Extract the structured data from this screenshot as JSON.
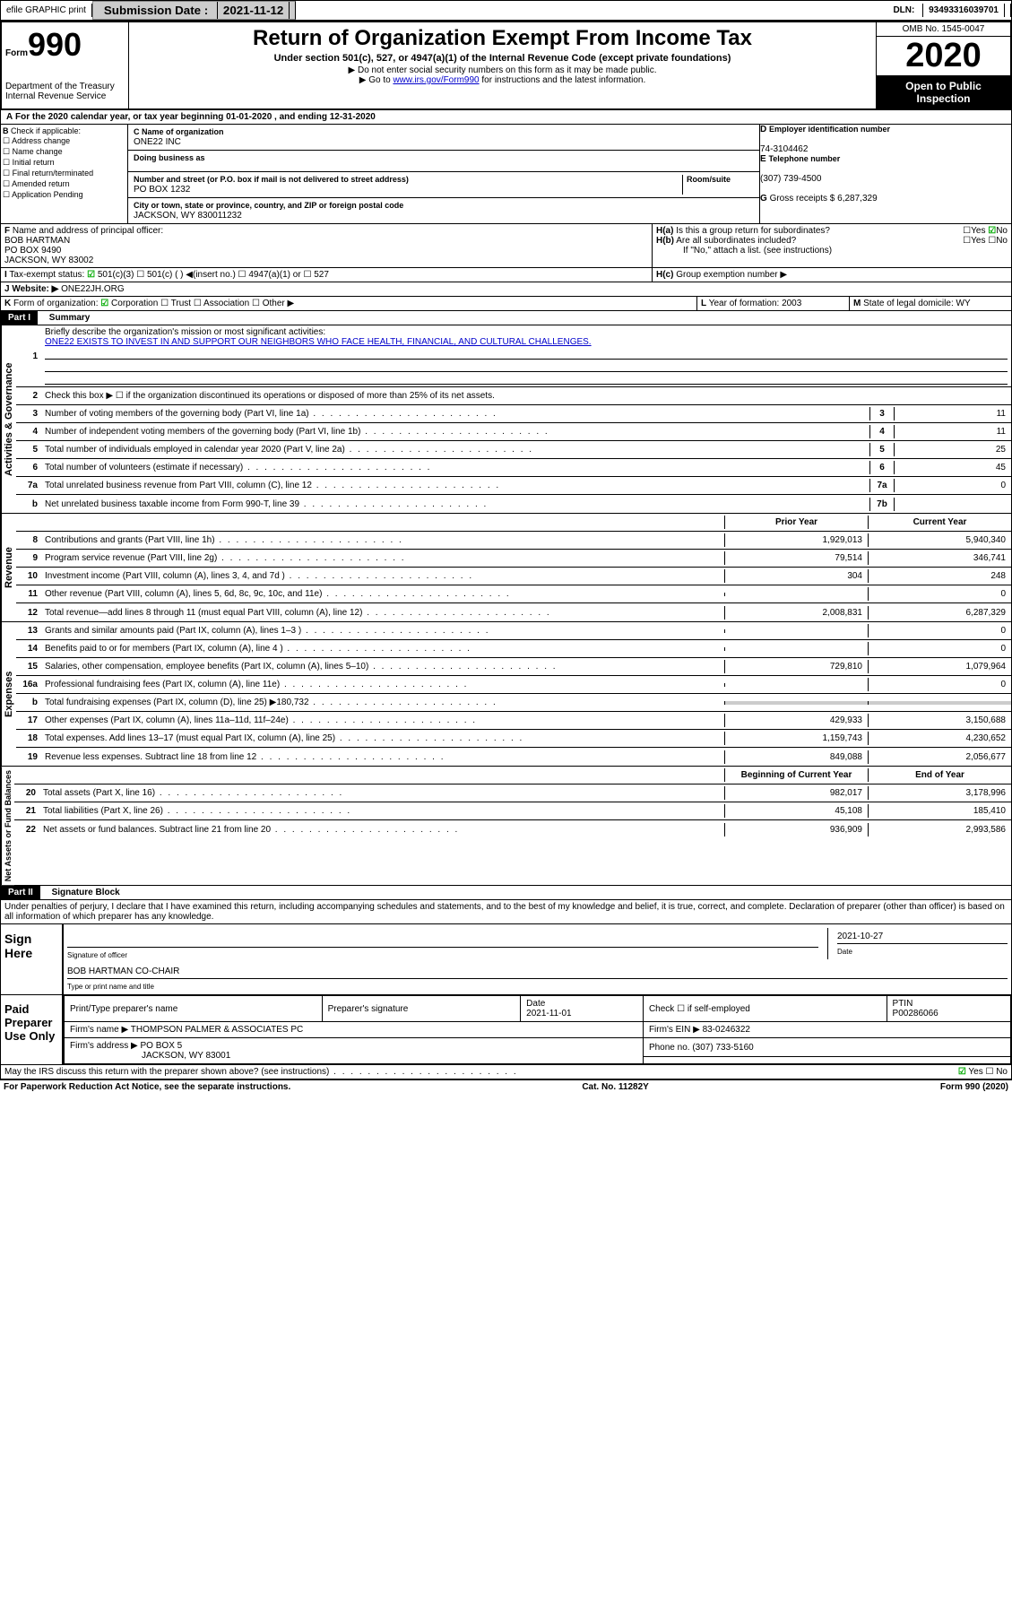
{
  "topbar": {
    "efile": "efile GRAPHIC print",
    "sub_label": "Submission Date : ",
    "sub_date": "2021-11-12",
    "dln_label": "DLN: ",
    "dln": "93493316039701"
  },
  "header": {
    "form_word": "Form",
    "form_num": "990",
    "dept": "Department of the Treasury Internal Revenue Service",
    "title": "Return of Organization Exempt From Income Tax",
    "subtitle": "Under section 501(c), 527, or 4947(a)(1) of the Internal Revenue Code (except private foundations)",
    "note1": "▶ Do not enter social security numbers on this form as it may be made public.",
    "note2_pre": "▶ Go to ",
    "note2_link": "www.irs.gov/Form990",
    "note2_post": " for instructions and the latest information.",
    "omb": "OMB No. 1545-0047",
    "year": "2020",
    "inspect": "Open to Public Inspection"
  },
  "A": {
    "text": "For the 2020 calendar year, or tax year beginning 01-01-2020    , and ending 12-31-2020"
  },
  "B": {
    "label": "Check if applicable:",
    "opts": [
      "Address change",
      "Name change",
      "Initial return",
      "Final return/terminated",
      "Amended return",
      "Application Pending"
    ]
  },
  "C": {
    "name_label": "Name of organization",
    "name": "ONE22 INC",
    "dba_label": "Doing business as",
    "dba": "",
    "street_label": "Number and street (or P.O. box if mail is not delivered to street address)",
    "room_label": "Room/suite",
    "street": "PO BOX 1232",
    "city_label": "City or town, state or province, country, and ZIP or foreign postal code",
    "city": "JACKSON, WY  830011232"
  },
  "D": {
    "label": "Employer identification number",
    "val": "74-3104462"
  },
  "E": {
    "label": "Telephone number",
    "val": "(307) 739-4500"
  },
  "G": {
    "label": "Gross receipts $ ",
    "val": "6,287,329"
  },
  "F": {
    "label": "Name and address of principal officer:",
    "name": "BOB HARTMAN",
    "addr1": "PO BOX 9490",
    "addr2": "JACKSON, WY  83002"
  },
  "H": {
    "a": "Is this a group return for subordinates?",
    "b": "Are all subordinates included?",
    "b_note": "If \"No,\" attach a list. (see instructions)",
    "c": "Group exemption number ▶",
    "yes": "Yes",
    "no": "No"
  },
  "I": {
    "label": "Tax-exempt status:",
    "opt1": "501(c)(3)",
    "opt2": "501(c) (  ) ◀(insert no.)",
    "opt3": "4947(a)(1) or",
    "opt4": "527"
  },
  "J": {
    "label": "Website: ▶",
    "val": "ONE22JH.ORG"
  },
  "K": {
    "label": "Form of organization:",
    "opts": [
      "Corporation",
      "Trust",
      "Association",
      "Other ▶"
    ]
  },
  "L": {
    "label": "Year of formation: ",
    "val": "2003"
  },
  "M": {
    "label": "State of legal domicile: ",
    "val": "WY"
  },
  "part1": {
    "label": "Part I",
    "title": "Summary"
  },
  "summary": {
    "l1_label": "Briefly describe the organization's mission or most significant activities:",
    "l1_text": "ONE22 EXISTS TO INVEST IN AND SUPPORT OUR NEIGHBORS WHO FACE HEALTH, FINANCIAL, AND CULTURAL CHALLENGES.",
    "l2": "Check this box ▶ ☐  if the organization discontinued its operations or disposed of more than 25% of its net assets.",
    "lines_gov": [
      {
        "n": "3",
        "t": "Number of voting members of the governing body (Part VI, line 1a)",
        "box": "3",
        "v": "11"
      },
      {
        "n": "4",
        "t": "Number of independent voting members of the governing body (Part VI, line 1b)",
        "box": "4",
        "v": "11"
      },
      {
        "n": "5",
        "t": "Total number of individuals employed in calendar year 2020 (Part V, line 2a)",
        "box": "5",
        "v": "25"
      },
      {
        "n": "6",
        "t": "Total number of volunteers (estimate if necessary)",
        "box": "6",
        "v": "45"
      },
      {
        "n": "7a",
        "t": "Total unrelated business revenue from Part VIII, column (C), line 12",
        "box": "7a",
        "v": "0"
      },
      {
        "n": "b",
        "t": "Net unrelated business taxable income from Form 990-T, line 39",
        "box": "7b",
        "v": ""
      }
    ],
    "col_prior": "Prior Year",
    "col_curr": "Current Year",
    "lines_rev": [
      {
        "n": "8",
        "t": "Contributions and grants (Part VIII, line 1h)",
        "p": "1,929,013",
        "c": "5,940,340"
      },
      {
        "n": "9",
        "t": "Program service revenue (Part VIII, line 2g)",
        "p": "79,514",
        "c": "346,741"
      },
      {
        "n": "10",
        "t": "Investment income (Part VIII, column (A), lines 3, 4, and 7d )",
        "p": "304",
        "c": "248"
      },
      {
        "n": "11",
        "t": "Other revenue (Part VIII, column (A), lines 5, 6d, 8c, 9c, 10c, and 11e)",
        "p": "",
        "c": "0"
      },
      {
        "n": "12",
        "t": "Total revenue—add lines 8 through 11 (must equal Part VIII, column (A), line 12)",
        "p": "2,008,831",
        "c": "6,287,329"
      }
    ],
    "lines_exp": [
      {
        "n": "13",
        "t": "Grants and similar amounts paid (Part IX, column (A), lines 1–3 )",
        "p": "",
        "c": "0"
      },
      {
        "n": "14",
        "t": "Benefits paid to or for members (Part IX, column (A), line 4 )",
        "p": "",
        "c": "0"
      },
      {
        "n": "15",
        "t": "Salaries, other compensation, employee benefits (Part IX, column (A), lines 5–10)",
        "p": "729,810",
        "c": "1,079,964"
      },
      {
        "n": "16a",
        "t": "Professional fundraising fees (Part IX, column (A), line 11e)",
        "p": "",
        "c": "0"
      },
      {
        "n": "b",
        "t": "Total fundraising expenses (Part IX, column (D), line 25) ▶180,732",
        "p": "shaded",
        "c": "shaded"
      },
      {
        "n": "17",
        "t": "Other expenses (Part IX, column (A), lines 11a–11d, 11f–24e)",
        "p": "429,933",
        "c": "3,150,688"
      },
      {
        "n": "18",
        "t": "Total expenses. Add lines 13–17 (must equal Part IX, column (A), line 25)",
        "p": "1,159,743",
        "c": "4,230,652"
      },
      {
        "n": "19",
        "t": "Revenue less expenses. Subtract line 18 from line 12",
        "p": "849,088",
        "c": "2,056,677"
      }
    ],
    "col_begin": "Beginning of Current Year",
    "col_end": "End of Year",
    "lines_net": [
      {
        "n": "20",
        "t": "Total assets (Part X, line 16)",
        "p": "982,017",
        "c": "3,178,996"
      },
      {
        "n": "21",
        "t": "Total liabilities (Part X, line 26)",
        "p": "45,108",
        "c": "185,410"
      },
      {
        "n": "22",
        "t": "Net assets or fund balances. Subtract line 21 from line 20",
        "p": "936,909",
        "c": "2,993,586"
      }
    ]
  },
  "vert": {
    "gov": "Activities & Governance",
    "rev": "Revenue",
    "exp": "Expenses",
    "net": "Net Assets or Fund Balances"
  },
  "part2": {
    "label": "Part II",
    "title": "Signature Block",
    "perjury": "Under penalties of perjury, I declare that I have examined this return, including accompanying schedules and statements, and to the best of my knowledge and belief, it is true, correct, and complete. Declaration of preparer (other than officer) is based on all information of which preparer has any knowledge."
  },
  "sign": {
    "here": "Sign Here",
    "sig_officer": "Signature of officer",
    "date": "Date",
    "date_val": "2021-10-27",
    "name": "BOB HARTMAN  CO-CHAIR",
    "name_label": "Type or print name and title"
  },
  "prep": {
    "label": "Paid Preparer Use Only",
    "h1": "Print/Type preparer's name",
    "h2": "Preparer's signature",
    "h3": "Date",
    "h3v": "2021-11-01",
    "h4": "Check ☐ if self-employed",
    "h5": "PTIN",
    "h5v": "P00286066",
    "firm_label": "Firm's name    ▶",
    "firm": "THOMPSON PALMER & ASSOCIATES PC",
    "ein_label": "Firm's EIN ▶",
    "ein": "83-0246322",
    "addr_label": "Firm's address ▶",
    "addr1": "PO BOX 5",
    "addr2": "JACKSON, WY  83001",
    "phone_label": "Phone no. ",
    "phone": "(307) 733-5160",
    "discuss": "May the IRS discuss this return with the preparer shown above? (see instructions)"
  },
  "footer": {
    "left": "For Paperwork Reduction Act Notice, see the separate instructions.",
    "mid": "Cat. No. 11282Y",
    "right": "Form 990 (2020)"
  }
}
